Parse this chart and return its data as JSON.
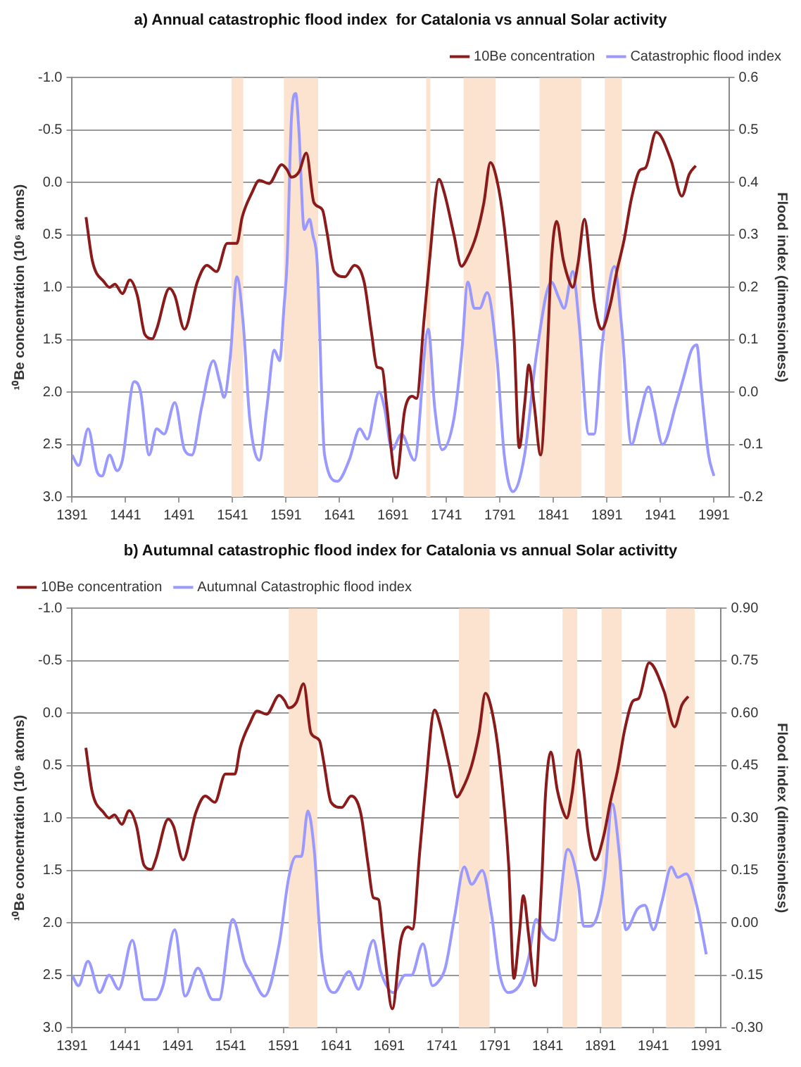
{
  "chart_data": [
    {
      "type": "line",
      "title": "a) Annual catastrophic flood index  for Catalonia vs annual Solar activity",
      "ylabel": "¹⁰Be concentration (10⁶ atoms)",
      "y2label": "Flood index (dimensionless)",
      "xlim": [
        1391,
        2005
      ],
      "xticks": [
        1391,
        1441,
        1491,
        1541,
        1591,
        1641,
        1691,
        1741,
        1791,
        1841,
        1891,
        1941,
        1991
      ],
      "ylim": [
        3.0,
        -1.0
      ],
      "yticks": [
        {
          "value": -1.0,
          "label": "-1.0"
        },
        -0.5,
        {
          "value": 0,
          "label": "0.0"
        },
        0.5,
        {
          "value": 1.0,
          "label": "1.0"
        },
        1.5,
        {
          "value": 2.0,
          "label": "2.0"
        },
        2.5,
        {
          "value": 3.0,
          "label": "3.0"
        }
      ],
      "y2lim": [
        -0.2,
        0.6
      ],
      "y2ticks": [
        -0.2,
        -0.1,
        {
          "value": 0,
          "label": "0.0"
        },
        0.1,
        0.2,
        0.3,
        0.4,
        0.5,
        0.6
      ],
      "grid": "y",
      "legend": "top right",
      "line_style": "solid",
      "marker": "none",
      "bands": [
        {
          "axis": "x",
          "from": 1540,
          "to": 1551,
          "color": "#fbe3cf"
        },
        {
          "axis": "x",
          "from": 1589,
          "to": 1621,
          "color": "#fbe3cf"
        },
        {
          "axis": "x",
          "from": 1722,
          "to": 1726,
          "color": "#fbe3cf"
        },
        {
          "axis": "x",
          "from": 1757,
          "to": 1787,
          "color": "#fbe3cf"
        },
        {
          "axis": "x",
          "from": 1828,
          "to": 1867,
          "color": "#fbe3cf"
        },
        {
          "axis": "x",
          "from": 1889,
          "to": 1905,
          "color": "#fbe3cf"
        }
      ],
      "series": [
        {
          "name": "10Be concentration",
          "color": "#8b1a1a",
          "x": [
            1404,
            1410,
            1421,
            1426,
            1431,
            1438,
            1445,
            1452,
            1459,
            1466,
            1470,
            1482,
            1487,
            1496,
            1508,
            1517,
            1526,
            1536,
            1545,
            1550,
            1559,
            1566,
            1575,
            1587,
            1592,
            1596,
            1603,
            1610,
            1617,
            1625,
            1629,
            1636,
            1646,
            1655,
            1664,
            1671,
            1676,
            1681,
            1685,
            1694,
            1702,
            1709,
            1713,
            1720,
            1725,
            1734,
            1739,
            1748,
            1755,
            1760,
            1769,
            1776,
            1782,
            1788,
            1795,
            1804,
            1809,
            1814,
            1818,
            1823,
            1829,
            1835,
            1839,
            1844,
            1850,
            1856,
            1859,
            1864,
            1870,
            1875,
            1879,
            1886,
            1894,
            1900,
            1907,
            1914,
            1922,
            1927,
            1937,
            1951,
            1961,
            1968,
            1974
          ],
          "values": [
            0.33,
            0.75,
            0.95,
            1.0,
            0.97,
            1.06,
            0.93,
            1.08,
            1.45,
            1.49,
            1.4,
            1.01,
            1.08,
            1.4,
            0.95,
            0.79,
            0.85,
            0.58,
            0.58,
            0.33,
            0.1,
            -0.02,
            0.01,
            -0.17,
            -0.12,
            -0.05,
            -0.1,
            -0.28,
            0.19,
            0.26,
            0.46,
            0.85,
            0.9,
            0.79,
            0.95,
            1.44,
            1.76,
            1.78,
            2.12,
            2.82,
            2.17,
            2.04,
            2.06,
            1.31,
            0.76,
            -0.03,
            0.1,
            0.5,
            0.8,
            0.73,
            0.5,
            0.19,
            -0.19,
            -0.03,
            0.42,
            1.44,
            2.53,
            2.12,
            1.74,
            2.12,
            2.6,
            1.67,
            0.76,
            0.37,
            0.73,
            0.95,
            1.0,
            0.77,
            0.35,
            0.73,
            1.13,
            1.4,
            1.17,
            0.86,
            0.55,
            0.15,
            -0.12,
            -0.14,
            -0.48,
            -0.21,
            0.13,
            -0.08,
            -0.16
          ]
        },
        {
          "name": "Catastrophic flood index",
          "color": "#9999ff",
          "axis": "y2",
          "x": [
            1391,
            1397,
            1406,
            1414,
            1419,
            1426,
            1433,
            1438,
            1449,
            1455,
            1463,
            1470,
            1477,
            1487,
            1496,
            1503,
            1512,
            1523,
            1529,
            1533,
            1539,
            1545,
            1551,
            1557,
            1566,
            1573,
            1580,
            1585,
            1589,
            1592,
            1596,
            1600,
            1603,
            1608,
            1613,
            1616,
            1620,
            1627,
            1639,
            1650,
            1660,
            1667,
            1678,
            1683,
            1690,
            1699,
            1711,
            1724,
            1730,
            1737,
            1748,
            1755,
            1761,
            1767,
            1772,
            1779,
            1788,
            1795,
            1803,
            1814,
            1825,
            1839,
            1846,
            1851,
            1859,
            1865,
            1874,
            1879,
            1886,
            1898,
            1905,
            1914,
            1921,
            1930,
            1935,
            1943,
            1956,
            1963,
            1970,
            1975,
            1979,
            1986,
            1991
          ],
          "values": [
            -0.12,
            -0.14,
            -0.07,
            -0.15,
            -0.16,
            -0.12,
            -0.15,
            -0.13,
            0.02,
            0.0,
            -0.12,
            -0.07,
            -0.08,
            -0.02,
            -0.11,
            -0.12,
            -0.03,
            0.06,
            0.02,
            -0.01,
            0.07,
            0.22,
            0.13,
            -0.05,
            -0.13,
            -0.03,
            0.08,
            0.06,
            0.16,
            0.25,
            0.52,
            0.57,
            0.5,
            0.31,
            0.33,
            0.3,
            0.25,
            -0.12,
            -0.17,
            -0.13,
            -0.07,
            -0.09,
            0.0,
            -0.03,
            -0.11,
            -0.08,
            -0.13,
            0.12,
            -0.03,
            -0.11,
            -0.05,
            0.07,
            0.21,
            0.16,
            0.16,
            0.19,
            0.07,
            -0.12,
            -0.19,
            -0.12,
            0.07,
            0.21,
            0.18,
            0.16,
            0.23,
            0.13,
            -0.08,
            -0.08,
            0.08,
            0.24,
            0.12,
            -0.1,
            -0.05,
            0.01,
            -0.03,
            -0.1,
            -0.02,
            0.03,
            0.08,
            0.09,
            0.01,
            -0.12,
            -0.16
          ]
        }
      ]
    },
    {
      "type": "line",
      "title": "b) Autumnal catastrophic flood index for Catalonia vs annual Solar activitty",
      "ylabel": "¹⁰Be concentration (10⁶ atoms)",
      "y2label": "Flood index (dimensionless)",
      "xlim": [
        1391,
        2005
      ],
      "xticks": [
        1391,
        1441,
        1491,
        1541,
        1591,
        1641,
        1691,
        1741,
        1791,
        1841,
        1891,
        1941,
        1991
      ],
      "ylim": [
        3.0,
        -1.0
      ],
      "yticks": [
        {
          "value": -1.0,
          "label": "-1.0"
        },
        -0.5,
        {
          "value": 0,
          "label": "0.0"
        },
        0.5,
        {
          "value": 1.0,
          "label": "1.0"
        },
        1.5,
        {
          "value": 2.0,
          "label": "2.0"
        },
        2.5,
        {
          "value": 3.0,
          "label": "3.0"
        }
      ],
      "y2lim": [
        -0.3,
        0.9
      ],
      "y2ticks": [
        {
          "value": -0.3,
          "label": "-0.30"
        },
        -0.15,
        {
          "value": 0,
          "label": "0.00"
        },
        0.15,
        {
          "value": 0.3,
          "label": "0.30"
        },
        0.45,
        {
          "value": 0.6,
          "label": "0.60"
        },
        0.75,
        {
          "value": 0.9,
          "label": "0.90"
        }
      ],
      "grid": "y",
      "legend": "top left",
      "line_style": "solid",
      "marker": "none",
      "bands": [
        {
          "axis": "x",
          "from": 1596,
          "to": 1623,
          "color": "#fbe3cf"
        },
        {
          "axis": "x",
          "from": 1757,
          "to": 1786,
          "color": "#fbe3cf"
        },
        {
          "axis": "x",
          "from": 1855,
          "to": 1869,
          "color": "#fbe3cf"
        },
        {
          "axis": "x",
          "from": 1892,
          "to": 1911,
          "color": "#fbe3cf"
        },
        {
          "axis": "x",
          "from": 1953,
          "to": 1980,
          "color": "#fbe3cf"
        }
      ],
      "series": [
        {
          "name": "10Be concentration",
          "color": "#8b1a1a",
          "x": [
            1404,
            1410,
            1421,
            1426,
            1431,
            1438,
            1445,
            1452,
            1459,
            1466,
            1470,
            1482,
            1487,
            1496,
            1508,
            1517,
            1526,
            1536,
            1545,
            1550,
            1559,
            1566,
            1575,
            1587,
            1592,
            1596,
            1603,
            1610,
            1617,
            1625,
            1629,
            1636,
            1646,
            1655,
            1664,
            1671,
            1676,
            1681,
            1685,
            1694,
            1702,
            1709,
            1713,
            1720,
            1725,
            1734,
            1739,
            1748,
            1755,
            1760,
            1769,
            1776,
            1782,
            1788,
            1795,
            1804,
            1809,
            1814,
            1818,
            1823,
            1829,
            1835,
            1839,
            1844,
            1850,
            1856,
            1859,
            1864,
            1870,
            1875,
            1879,
            1886,
            1894,
            1900,
            1907,
            1914,
            1922,
            1927,
            1937,
            1951,
            1961,
            1968,
            1974
          ],
          "values": [
            0.33,
            0.75,
            0.95,
            1.0,
            0.97,
            1.06,
            0.93,
            1.08,
            1.45,
            1.49,
            1.4,
            1.01,
            1.08,
            1.4,
            0.95,
            0.79,
            0.85,
            0.58,
            0.58,
            0.33,
            0.1,
            -0.02,
            0.01,
            -0.17,
            -0.12,
            -0.05,
            -0.1,
            -0.28,
            0.19,
            0.26,
            0.46,
            0.85,
            0.9,
            0.79,
            0.95,
            1.44,
            1.76,
            1.78,
            2.12,
            2.82,
            2.17,
            2.04,
            2.06,
            1.31,
            0.76,
            -0.03,
            0.1,
            0.5,
            0.8,
            0.73,
            0.5,
            0.19,
            -0.19,
            -0.03,
            0.42,
            1.44,
            2.53,
            2.12,
            1.74,
            2.12,
            2.6,
            1.67,
            0.76,
            0.37,
            0.73,
            0.95,
            1.0,
            0.77,
            0.35,
            0.73,
            1.13,
            1.4,
            1.17,
            0.86,
            0.55,
            0.15,
            -0.12,
            -0.14,
            -0.48,
            -0.21,
            0.13,
            -0.08,
            -0.16
          ]
        },
        {
          "name": "Autumnal Catastrophic flood index",
          "color": "#9999ff",
          "axis": "y2",
          "x": [
            1391,
            1397,
            1406,
            1417,
            1426,
            1435,
            1448,
            1459,
            1470,
            1477,
            1488,
            1498,
            1510,
            1524,
            1530,
            1543,
            1554,
            1561,
            1573,
            1587,
            1596,
            1603,
            1608,
            1614,
            1620,
            1627,
            1639,
            1653,
            1662,
            1676,
            1683,
            1695,
            1706,
            1712,
            1723,
            1732,
            1737,
            1744,
            1753,
            1762,
            1769,
            1779,
            1788,
            1795,
            1804,
            1816,
            1823,
            1830,
            1837,
            1847,
            1860,
            1870,
            1875,
            1881,
            1888,
            1895,
            1902,
            1909,
            1915,
            1926,
            1933,
            1941,
            1949,
            1958,
            1964,
            1972,
            1982,
            1991
          ],
          "values": [
            -0.15,
            -0.18,
            -0.11,
            -0.2,
            -0.15,
            -0.19,
            -0.05,
            -0.22,
            -0.22,
            -0.18,
            -0.02,
            -0.21,
            -0.13,
            -0.22,
            -0.22,
            0.01,
            -0.11,
            -0.15,
            -0.21,
            -0.06,
            0.13,
            0.19,
            0.19,
            0.32,
            0.21,
            -0.09,
            -0.2,
            -0.14,
            -0.19,
            -0.05,
            -0.14,
            -0.2,
            -0.15,
            -0.15,
            -0.06,
            -0.18,
            -0.17,
            -0.13,
            0.02,
            0.16,
            0.11,
            0.15,
            0.02,
            -0.14,
            -0.2,
            -0.17,
            -0.1,
            0.01,
            -0.03,
            -0.05,
            0.21,
            0.11,
            -0.01,
            -0.01,
            0.02,
            0.13,
            0.34,
            0.19,
            -0.02,
            0.04,
            0.05,
            -0.02,
            0.06,
            0.16,
            0.13,
            0.14,
            0.05,
            -0.09
          ]
        }
      ]
    }
  ]
}
